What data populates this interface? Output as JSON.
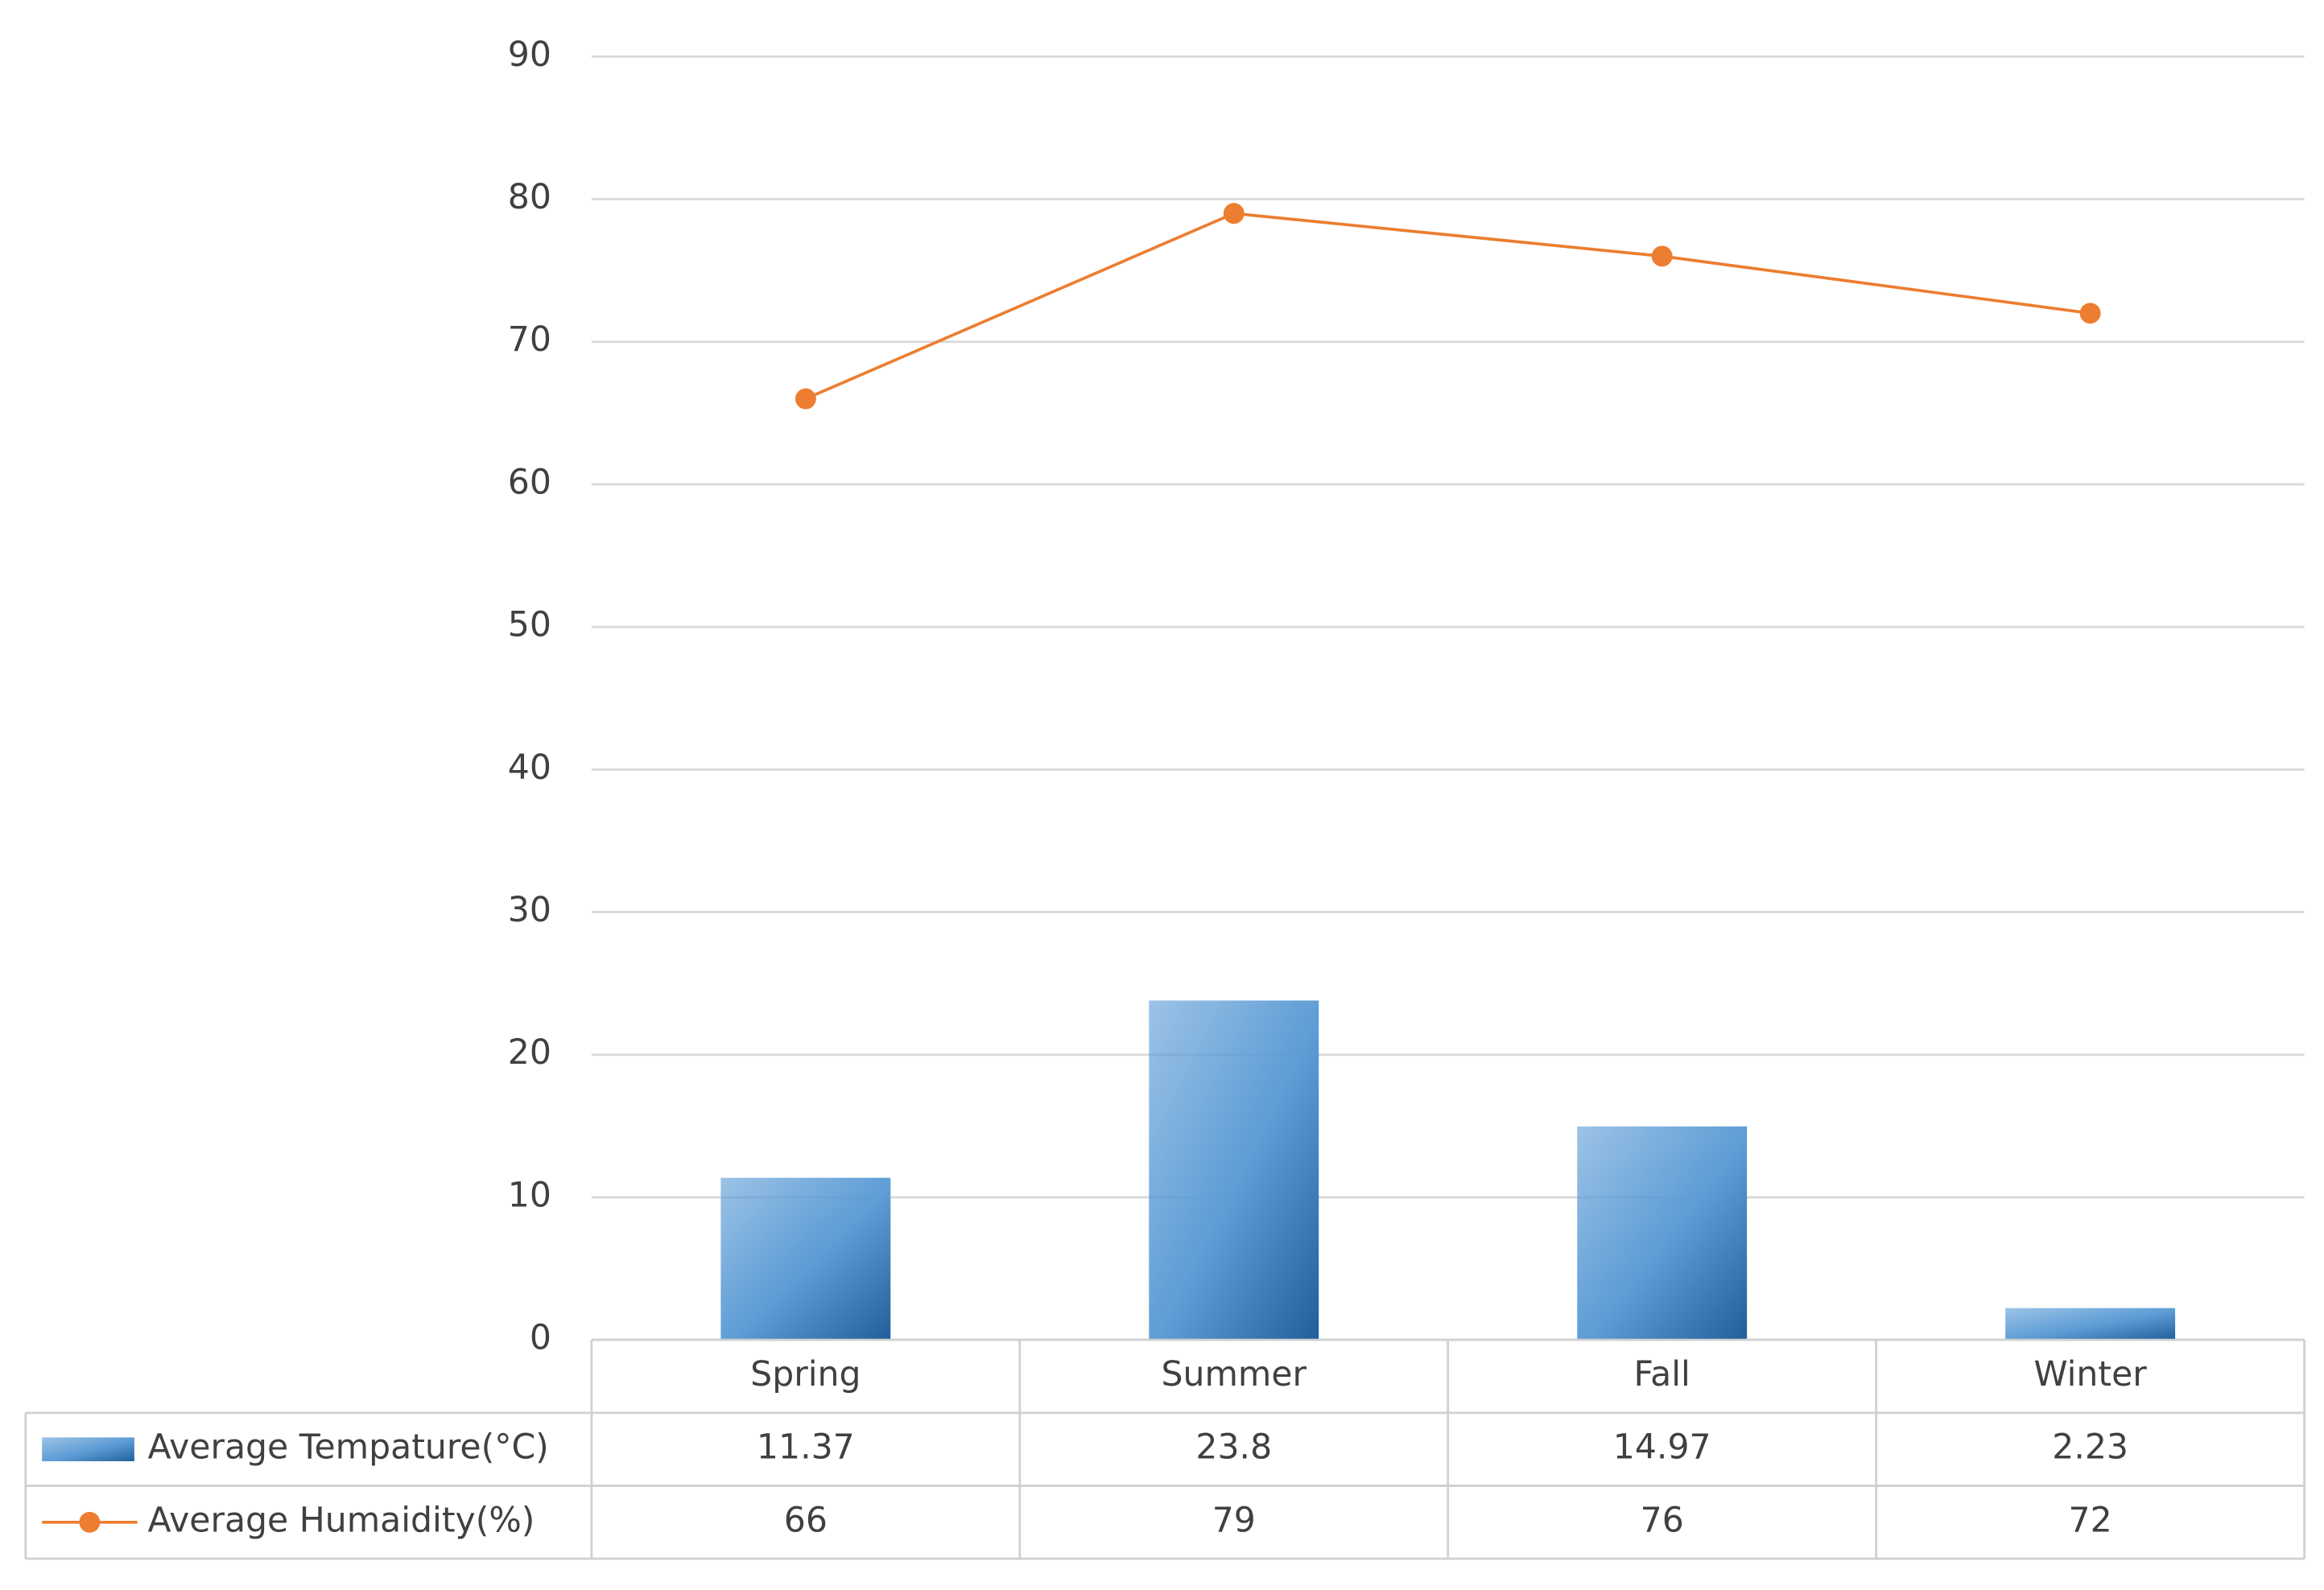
{
  "chart_data": {
    "type": "bar",
    "categories": [
      "Spring",
      "Summer",
      "Fall",
      "Winter"
    ],
    "series": [
      {
        "name": "Average Tempature(°C)",
        "type": "bar",
        "color": "#5b9bd5",
        "values": [
          11.37,
          23.8,
          14.97,
          2.23
        ]
      },
      {
        "name": "Average Humaidity(%)",
        "type": "line",
        "color": "#ed7d31",
        "values": [
          66,
          79,
          76,
          72
        ]
      }
    ],
    "ylim": [
      0,
      90
    ],
    "yticks": [
      0,
      10,
      20,
      30,
      40,
      50,
      60,
      70,
      80,
      90
    ],
    "grid": true,
    "data_table": true
  }
}
